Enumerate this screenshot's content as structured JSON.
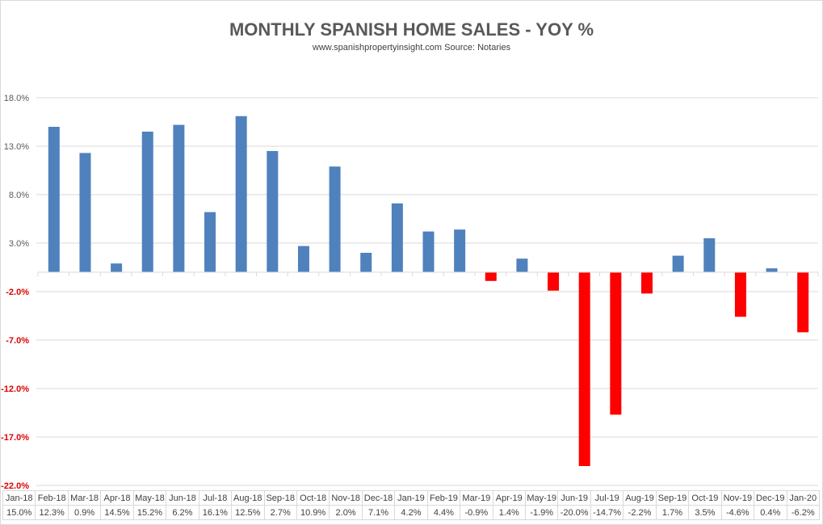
{
  "chart_data": {
    "type": "bar",
    "title": "MONTHLY SPANISH HOME SALES - YOY %",
    "subtitle": "www.spanishpropertyinsight.com Source:  Notaries",
    "categories": [
      "Jan-18",
      "Feb-18",
      "Mar-18",
      "Apr-18",
      "May-18",
      "Jun-18",
      "Jul-18",
      "Aug-18",
      "Sep-18",
      "Oct-18",
      "Nov-18",
      "Dec-18",
      "Jan-19",
      "Feb-19",
      "Mar-19",
      "Apr-19",
      "May-19",
      "Jun-19",
      "Jul-19",
      "Aug-19",
      "Sep-19",
      "Oct-19",
      "Nov-19",
      "Dec-19",
      "Jan-20"
    ],
    "values": [
      15.0,
      12.3,
      0.9,
      14.5,
      15.2,
      6.2,
      16.1,
      12.5,
      2.7,
      10.9,
      2.0,
      7.1,
      4.2,
      4.4,
      -0.9,
      1.4,
      -1.9,
      -20.0,
      -14.7,
      -2.2,
      1.7,
      3.5,
      -4.6,
      0.4,
      -6.2
    ],
    "value_labels": [
      "15.0%",
      "12.3%",
      "0.9%",
      "14.5%",
      "15.2%",
      "6.2%",
      "16.1%",
      "12.5%",
      "2.7%",
      "10.9%",
      "2.0%",
      "7.1%",
      "4.2%",
      "4.4%",
      "-0.9%",
      "1.4%",
      "-1.9%",
      "-20.0%",
      "-14.7%",
      "-2.2%",
      "1.7%",
      "3.5%",
      "-4.6%",
      "0.4%",
      "-6.2%"
    ],
    "yticks": [
      18,
      13,
      8,
      3,
      -2,
      -7,
      -12,
      -17,
      -22
    ],
    "ytick_labels": [
      "18.0%",
      "13.0%",
      "8.0%",
      "3.0%",
      "-2.0%",
      "-7.0%",
      "-12.0%",
      "-17.0%",
      "-22.0%"
    ],
    "ylim": [
      -22,
      18
    ],
    "grid": true,
    "xlabel": "",
    "ylabel": "",
    "colors": {
      "positive": "#4f81bd",
      "negative": "#ff0000",
      "negative_tick": "#e00000",
      "positive_tick": "#595959"
    }
  }
}
